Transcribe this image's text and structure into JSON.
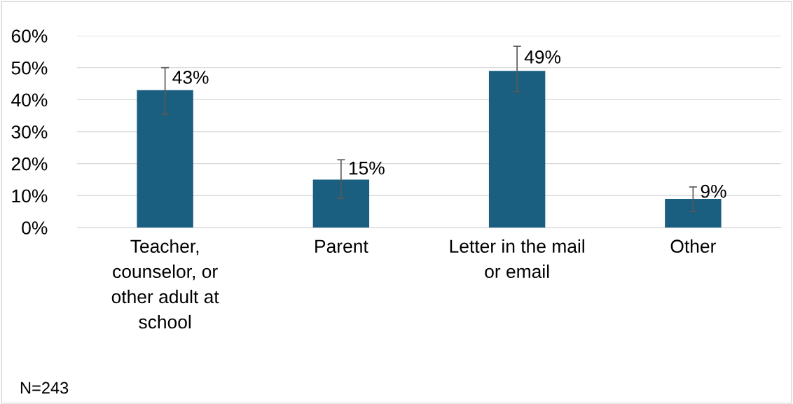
{
  "chart_data": {
    "type": "bar",
    "categories": [
      "Teacher,\ncounselor, or\nother adult at\nschool",
      "Parent",
      "Letter in the mail\nor email",
      "Other"
    ],
    "values": [
      43,
      15,
      49,
      9
    ],
    "value_labels": [
      "43%",
      "15%",
      "49%",
      "9%"
    ],
    "errors": [
      [
        35.5,
        50
      ],
      [
        9.2,
        21.2
      ],
      [
        42.5,
        56.7
      ],
      [
        5,
        12.7
      ]
    ],
    "color": "#1a5e80",
    "ylim": [
      0,
      60
    ],
    "yticks": [
      {
        "value": 0,
        "label": "0%"
      },
      {
        "value": 10,
        "label": "10%"
      },
      {
        "value": 20,
        "label": "20%"
      },
      {
        "value": 30,
        "label": "30%"
      },
      {
        "value": 40,
        "label": "40%"
      },
      {
        "value": 50,
        "label": "50%"
      },
      {
        "value": 60,
        "label": "60%"
      }
    ],
    "grid": "y",
    "annotations": [
      "N=243"
    ]
  }
}
